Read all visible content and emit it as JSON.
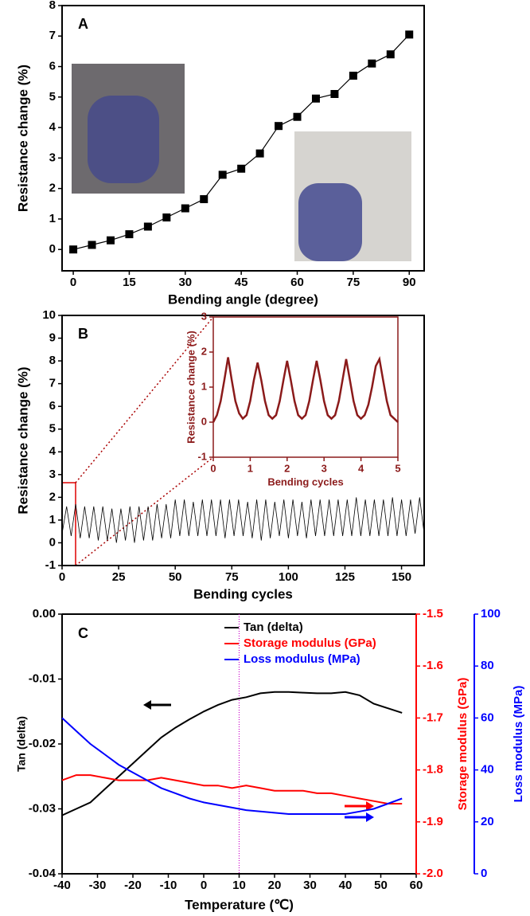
{
  "chart_data": [
    {
      "type": "line",
      "annotation": "A",
      "xlabel": "Bending angle (degree)",
      "ylabel": "Resistance change (%)",
      "color": "#000000",
      "marker": "square",
      "x": [
        0,
        5,
        10,
        15,
        20,
        25,
        30,
        35,
        40,
        45,
        50,
        55,
        60,
        65,
        70,
        75,
        80,
        85,
        90
      ],
      "values": [
        0,
        0.15,
        0.3,
        0.5,
        0.75,
        1.05,
        1.35,
        1.65,
        2.45,
        2.65,
        3.15,
        4.05,
        4.35,
        4.95,
        5.1,
        5.7,
        6.1,
        6.4,
        7.05
      ],
      "xlim": [
        -3,
        94
      ],
      "ylim": [
        -0.7,
        8
      ],
      "xticks": [
        0,
        15,
        30,
        45,
        60,
        75,
        90
      ],
      "yticks": [
        0,
        1,
        2,
        3,
        4,
        5,
        6,
        7,
        8
      ]
    },
    {
      "type": "line",
      "annotation": "B",
      "xlabel": "Bending cycles",
      "ylabel": "Resistance change (%)",
      "color": "#000000",
      "x": [
        0,
        2,
        4,
        6,
        8,
        10,
        12,
        14,
        16,
        18,
        20,
        22,
        24,
        26,
        28,
        30,
        32,
        34,
        36,
        38,
        40,
        42,
        44,
        46,
        48,
        50,
        52,
        54,
        56,
        58,
        60,
        62,
        64,
        66,
        68,
        70,
        72,
        74,
        76,
        78,
        80,
        82,
        84,
        86,
        88,
        90,
        92,
        94,
        96,
        98,
        100,
        102,
        104,
        106,
        108,
        110,
        112,
        114,
        116,
        118,
        120,
        122,
        124,
        126,
        128,
        130,
        132,
        134,
        136,
        138,
        140,
        142,
        144,
        146,
        148,
        150,
        152,
        154,
        156,
        158,
        160
      ],
      "values": [
        0.4,
        1.6,
        0.3,
        1.7,
        0.2,
        1.6,
        0.2,
        1.6,
        0.1,
        1.6,
        0.1,
        1.5,
        0.0,
        1.5,
        0.1,
        1.6,
        0.0,
        1.6,
        0.1,
        1.6,
        0.1,
        1.7,
        0.2,
        1.7,
        0.2,
        1.9,
        0.3,
        1.9,
        0.3,
        1.8,
        0.3,
        1.9,
        0.3,
        1.9,
        0.3,
        1.9,
        0.2,
        1.9,
        0.3,
        1.9,
        0.3,
        1.8,
        0.2,
        1.9,
        0.1,
        1.9,
        0.2,
        1.8,
        0.3,
        1.9,
        0.2,
        1.9,
        0.3,
        1.8,
        0.2,
        1.9,
        0.3,
        1.9,
        0.3,
        1.9,
        0.3,
        1.9,
        0.3,
        1.9,
        0.3,
        2.0,
        0.3,
        1.9,
        0.3,
        1.9,
        0.3,
        1.9,
        0.3,
        2.0,
        0.3,
        1.9,
        0.3,
        1.9,
        0.4,
        2.0,
        0.4
      ],
      "xlim": [
        0,
        160
      ],
      "ylim": [
        -1,
        10
      ],
      "xticks": [
        0,
        25,
        50,
        75,
        100,
        125,
        150
      ],
      "yticks": [
        -1,
        0,
        1,
        2,
        3,
        4,
        5,
        6,
        7,
        8,
        9,
        10
      ]
    },
    {
      "type": "line",
      "xlabel": "Bending cycles",
      "ylabel": "Resistance change (%)",
      "color": "#8b1a1a",
      "x": [
        0,
        0.1,
        0.2,
        0.3,
        0.4,
        0.5,
        0.6,
        0.7,
        0.8,
        0.9,
        1,
        1.1,
        1.2,
        1.3,
        1.4,
        1.5,
        1.6,
        1.7,
        1.8,
        1.9,
        2,
        2.1,
        2.2,
        2.3,
        2.4,
        2.5,
        2.6,
        2.7,
        2.8,
        2.9,
        3,
        3.1,
        3.2,
        3.3,
        3.4,
        3.5,
        3.6,
        3.7,
        3.8,
        3.9,
        4,
        4.1,
        4.2,
        4.3,
        4.4,
        4.5,
        4.6,
        4.7,
        4.8,
        4.9,
        5
      ],
      "values": [
        0,
        0.2,
        0.6,
        1.2,
        1.85,
        1.2,
        0.6,
        0.25,
        0.1,
        0.2,
        0.6,
        1.2,
        1.7,
        1.2,
        0.6,
        0.2,
        0.1,
        0.2,
        0.6,
        1.2,
        1.75,
        1.2,
        0.6,
        0.2,
        0.1,
        0.2,
        0.6,
        1.2,
        1.75,
        1.2,
        0.6,
        0.2,
        0.1,
        0.2,
        0.6,
        1.2,
        1.8,
        1.2,
        0.6,
        0.2,
        0.1,
        0.2,
        0.5,
        1.0,
        1.6,
        1.8,
        1.2,
        0.6,
        0.2,
        0.1,
        0
      ],
      "xlim": [
        0,
        5
      ],
      "ylim": [
        -1,
        3
      ],
      "xticks": [
        0,
        1,
        2,
        3,
        4,
        5
      ],
      "yticks": [
        -1,
        0,
        1,
        2,
        3
      ]
    },
    {
      "type": "line",
      "annotation": "C",
      "xlabel": "Temperature (℃)",
      "ylabel": "Tan (delta)",
      "y2label": "Storage modulus (GPa)",
      "y3label": "Loss modulus (MPa)",
      "x": [
        -40,
        -36,
        -32,
        -28,
        -24,
        -20,
        -16,
        -12,
        -8,
        -4,
        0,
        4,
        8,
        12,
        16,
        20,
        24,
        28,
        32,
        36,
        40,
        44,
        48,
        52,
        56
      ],
      "series": [
        {
          "name": "Tan (delta)",
          "color": "#000000",
          "axis": "y",
          "values": [
            -0.031,
            -0.03,
            -0.029,
            -0.027,
            -0.025,
            -0.023,
            -0.021,
            -0.019,
            -0.0175,
            -0.0162,
            -0.015,
            -0.014,
            -0.0132,
            -0.0128,
            -0.0122,
            -0.012,
            -0.012,
            -0.0121,
            -0.0122,
            -0.0122,
            -0.012,
            -0.0125,
            -0.0138,
            -0.0145,
            -0.0152
          ]
        },
        {
          "name": "Storage modulus (GPa)",
          "color": "#ff0000",
          "axis": "y2",
          "values": [
            -1.82,
            -1.81,
            -1.81,
            -1.815,
            -1.82,
            -1.82,
            -1.82,
            -1.815,
            -1.82,
            -1.825,
            -1.83,
            -1.83,
            -1.835,
            -1.83,
            -1.835,
            -1.84,
            -1.84,
            -1.84,
            -1.845,
            -1.845,
            -1.85,
            -1.855,
            -1.86,
            -1.865,
            -1.865
          ]
        },
        {
          "name": "Loss modulus (MPa)",
          "color": "#0000ff",
          "axis": "y3",
          "values": [
            60,
            55,
            50,
            46,
            42,
            39,
            36,
            33,
            31,
            29,
            27.5,
            26.5,
            25.5,
            24.5,
            24,
            23.5,
            23,
            23,
            23,
            23,
            23,
            24,
            25,
            27,
            29
          ]
        }
      ],
      "xlim": [
        -40,
        60
      ],
      "xticks": [
        -40,
        -30,
        -20,
        -10,
        0,
        10,
        20,
        30,
        40,
        50,
        60
      ],
      "ylim": [
        -0.04,
        0
      ],
      "yticks": [
        -0.04,
        -0.03,
        -0.02,
        -0.01,
        {
          "value": 0,
          "label": "0.00"
        }
      ],
      "y2lim": [
        -2,
        -1.5
      ],
      "y2ticks": [
        {
          "value": -2,
          "label": "-2.0"
        },
        -1.9,
        -1.8,
        -1.7,
        -1.6,
        -1.5
      ],
      "y3lim": [
        0,
        100
      ],
      "y3ticks": [
        0,
        20,
        40,
        60,
        80,
        100
      ],
      "vline": 10
    }
  ]
}
